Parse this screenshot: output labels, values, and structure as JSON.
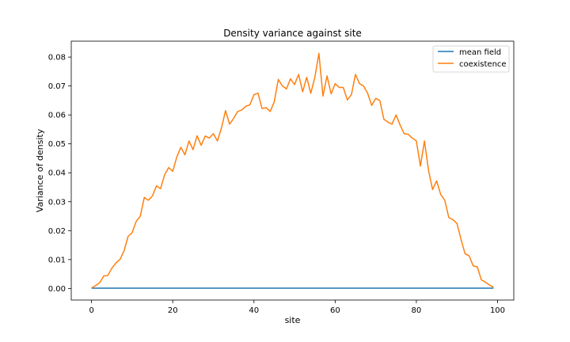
{
  "chart_data": {
    "type": "line",
    "title": "Density variance against site",
    "xlabel": "site",
    "ylabel": "Variance of density",
    "xlim": [
      -5,
      104
    ],
    "ylim": [
      -0.004,
      0.0855
    ],
    "xticks": [
      0,
      20,
      40,
      60,
      80,
      100
    ],
    "yticks": [
      0.0,
      0.01,
      0.02,
      0.03,
      0.04,
      0.05,
      0.06,
      0.07,
      0.08
    ],
    "grid": false,
    "legend_position": "top-right",
    "colors": {
      "mean field": "#1f77b4",
      "coexistence": "#ff7f0e"
    },
    "x": [
      0,
      1,
      2,
      3,
      4,
      5,
      6,
      7,
      8,
      9,
      10,
      11,
      12,
      13,
      14,
      15,
      16,
      17,
      18,
      19,
      20,
      21,
      22,
      23,
      24,
      25,
      26,
      27,
      28,
      29,
      30,
      31,
      32,
      33,
      34,
      35,
      36,
      37,
      38,
      39,
      40,
      41,
      42,
      43,
      44,
      45,
      46,
      47,
      48,
      49,
      50,
      51,
      52,
      53,
      54,
      55,
      56,
      57,
      58,
      59,
      60,
      61,
      62,
      63,
      64,
      65,
      66,
      67,
      68,
      69,
      70,
      71,
      72,
      73,
      74,
      75,
      76,
      77,
      78,
      79,
      80,
      81,
      82,
      83,
      84,
      85,
      86,
      87,
      88,
      89,
      90,
      91,
      92,
      93,
      94,
      95,
      96,
      97,
      98,
      99
    ],
    "series": [
      {
        "name": "mean field",
        "values": [
          0.0001,
          0.0001,
          0.0001,
          0.0001,
          0.0001,
          0.0001,
          0.0001,
          0.0001,
          0.0001,
          0.0001,
          0.0001,
          0.0001,
          0.0001,
          0.0001,
          0.0001,
          0.0001,
          0.0001,
          0.0001,
          0.0001,
          0.0001,
          0.0001,
          0.0001,
          0.0001,
          0.0001,
          0.0001,
          0.0001,
          0.0001,
          0.0001,
          0.0001,
          0.0001,
          0.0001,
          0.0001,
          0.0001,
          0.0001,
          0.0001,
          0.0001,
          0.0001,
          0.0001,
          0.0001,
          0.0001,
          0.0001,
          0.0001,
          0.0001,
          0.0001,
          0.0001,
          0.0001,
          0.0001,
          0.0001,
          0.0001,
          0.0001,
          0.0001,
          0.0001,
          0.0001,
          0.0001,
          0.0001,
          0.0001,
          0.0001,
          0.0001,
          0.0001,
          0.0001,
          0.0001,
          0.0001,
          0.0001,
          0.0001,
          0.0001,
          0.0001,
          0.0001,
          0.0001,
          0.0001,
          0.0001,
          0.0001,
          0.0001,
          0.0001,
          0.0001,
          0.0001,
          0.0001,
          0.0001,
          0.0001,
          0.0001,
          0.0001,
          0.0001,
          0.0001,
          0.0001,
          0.0001,
          0.0001,
          0.0001,
          0.0001,
          0.0001,
          0.0001,
          0.0001,
          0.0001,
          0.0001,
          0.0001,
          0.0001,
          0.0001,
          0.0001,
          0.0001,
          0.0001,
          0.0001,
          0.0001
        ]
      },
      {
        "name": "coexistence",
        "values": [
          0.0002,
          0.001,
          0.002,
          0.0043,
          0.0045,
          0.007,
          0.0088,
          0.01,
          0.013,
          0.018,
          0.0193,
          0.0232,
          0.025,
          0.0315,
          0.0305,
          0.032,
          0.0355,
          0.0345,
          0.0393,
          0.0418,
          0.0405,
          0.0455,
          0.0488,
          0.0462,
          0.051,
          0.048,
          0.0528,
          0.0495,
          0.0527,
          0.052,
          0.0535,
          0.051,
          0.0555,
          0.0615,
          0.0568,
          0.0588,
          0.0612,
          0.0617,
          0.063,
          0.0635,
          0.067,
          0.0675,
          0.0622,
          0.0625,
          0.0612,
          0.0645,
          0.0723,
          0.07,
          0.069,
          0.0725,
          0.0705,
          0.074,
          0.068,
          0.073,
          0.0675,
          0.073,
          0.0813,
          0.0665,
          0.0735,
          0.0673,
          0.0708,
          0.0695,
          0.0695,
          0.0652,
          0.067,
          0.074,
          0.0708,
          0.07,
          0.0675,
          0.0633,
          0.0657,
          0.065,
          0.0585,
          0.0575,
          0.0568,
          0.06,
          0.0565,
          0.0535,
          0.0533,
          0.052,
          0.051,
          0.0423,
          0.051,
          0.0408,
          0.0342,
          0.0372,
          0.0325,
          0.0305,
          0.0245,
          0.0238,
          0.0225,
          0.017,
          0.012,
          0.0113,
          0.0078,
          0.0075,
          0.003,
          0.0022,
          0.0012,
          0.0004
        ]
      }
    ]
  }
}
